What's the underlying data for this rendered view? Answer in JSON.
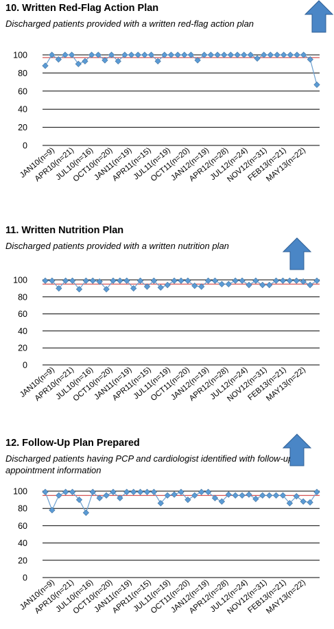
{
  "colors": {
    "marker": "#5b9bd5",
    "marker_stroke": "#41729f",
    "line": "#6a9fd0",
    "target": "#d04040",
    "arrow_fill": "#4a86c6",
    "arrow_stroke": "#2f5f95",
    "grid": "#000000"
  },
  "charts": [
    {
      "title": "10. Written Red-Flag Action Plan",
      "subtitle": "Discharged patients provided with a written red-flag action plan",
      "arrow_icon": "up-arrow-icon"
    },
    {
      "title": "11. Written Nutrition Plan",
      "subtitle": "Discharged patients provided with a written nutrition plan",
      "arrow_icon": "up-arrow-icon"
    },
    {
      "title": "12. Follow-Up Plan Prepared",
      "subtitle": "Discharged patients having PCP and cardiologist identified with follow-up appointment information",
      "arrow_icon": "up-arrow-icon"
    }
  ],
  "chart_data": [
    {
      "type": "line",
      "title": "10. Written Red-Flag Action Plan",
      "subtitle": "Discharged patients provided with a written red-flag action plan",
      "x_tick_labels": [
        "JAN10(n=9)",
        "APR10(n=21)",
        "JUL10(n=16)",
        "OCT10(n=20)",
        "JAN11(n=19)",
        "APR11(n=15)",
        "JUL11(n=19)",
        "OCT11(n=20)",
        "JAN12(n=19)",
        "APR12(n=28)",
        "JUL12(n=24)",
        "NOV12(n=31)",
        "FEB13(n=21)",
        "MAY13(n=22)"
      ],
      "yticks": [
        0,
        20,
        40,
        60,
        80,
        100
      ],
      "ylim": [
        0,
        100
      ],
      "grid": true,
      "target": 97,
      "values": [
        88,
        100,
        95,
        100,
        100,
        90,
        93,
        100,
        100,
        94,
        100,
        93,
        100,
        100,
        100,
        100,
        100,
        93,
        100,
        100,
        100,
        100,
        100,
        94,
        100,
        100,
        100,
        100,
        100,
        100,
        100,
        100,
        96,
        100,
        100,
        100,
        100,
        100,
        100,
        100,
        95,
        67
      ]
    },
    {
      "type": "line",
      "title": "11. Written Nutrition Plan",
      "subtitle": "Discharged patients provided with a written nutrition plan",
      "x_tick_labels": [
        "JAN10(n=9)",
        "APR10(n=21)",
        "JUL10(n=16)",
        "OCT10(n=20)",
        "JAN11(n=19)",
        "APR11(n=15)",
        "JUL11(n=19)",
        "OCT11(n=20)",
        "JAN12(n=19)",
        "APR12(n=28)",
        "JUL12(n=24)",
        "NOV12(n=31)",
        "FEB13(n=21)",
        "MAY13(n=22)"
      ],
      "yticks": [
        0,
        20,
        40,
        60,
        80,
        100
      ],
      "ylim": [
        0,
        100
      ],
      "grid": true,
      "target": 95,
      "values": [
        99,
        99,
        90,
        99,
        99,
        89,
        99,
        99,
        98,
        89,
        99,
        99,
        99,
        90,
        99,
        92,
        99,
        91,
        94,
        99,
        99,
        99,
        93,
        92,
        99,
        99,
        95,
        95,
        99,
        99,
        94,
        99,
        94,
        94,
        99,
        99,
        99,
        99,
        98,
        94,
        99
      ]
    },
    {
      "type": "line",
      "title": "12. Follow-Up Plan Prepared",
      "subtitle": "Discharged patients having PCP and cardiologist identified with follow-up appointment information",
      "x_tick_labels": [
        "JAN10(n=9)",
        "APR10(n=21)",
        "JUL10(n=16)",
        "OCT10(n=20)",
        "JAN11(n=19)",
        "APR11(n=15)",
        "JUL11(n=19)",
        "OCT11(n=20)",
        "JAN12(n=19)",
        "APR12(n=28)",
        "JUL12(n=24)",
        "NOV12(n=31)",
        "FEB13(n=21)",
        "MAY13(n=22)"
      ],
      "yticks": [
        0,
        20,
        40,
        60,
        80,
        100
      ],
      "ylim": [
        0,
        100
      ],
      "grid": true,
      "target": 95,
      "values": [
        99,
        78,
        95,
        99,
        99,
        90,
        75,
        99,
        92,
        95,
        99,
        92,
        99,
        99,
        99,
        99,
        99,
        86,
        95,
        96,
        99,
        90,
        95,
        99,
        99,
        92,
        88,
        96,
        95,
        95,
        96,
        91,
        95,
        95,
        95,
        95,
        86,
        94,
        88,
        87,
        99
      ]
    }
  ]
}
